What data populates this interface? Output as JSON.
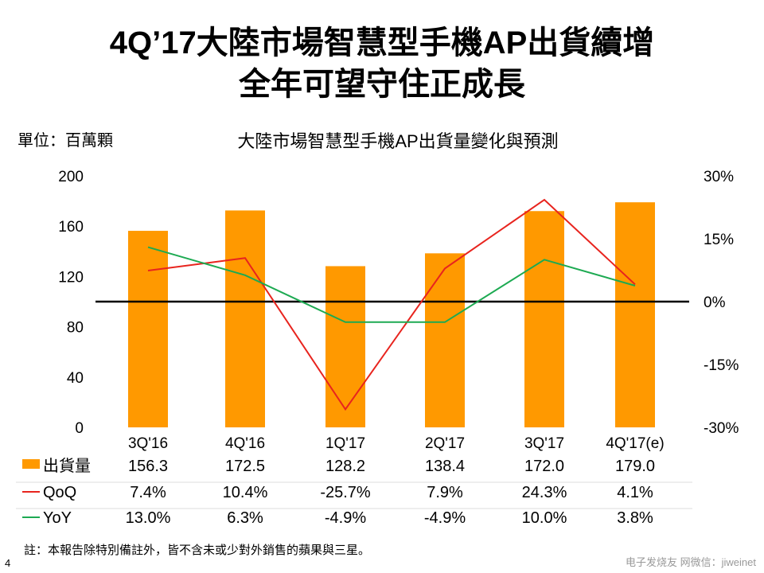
{
  "title_line1": "4Q’17大陸市場智慧型手機AP出貨續增",
  "title_line2": "全年可望守住正成長",
  "unit_label": "單位：百萬顆",
  "note": "註：本報告除特別備註外，皆不含未或少對外銷售的蘋果與三星。",
  "page_number": "4",
  "watermark": "电子发烧友 网微信：jiweinet",
  "chart_data": {
    "type": "bar",
    "title": "大陸市場智慧型手機AP出貨量變化與預測",
    "categories": [
      "3Q'16",
      "4Q'16",
      "1Q'17",
      "2Q'17",
      "3Q'17",
      "4Q'17(e)"
    ],
    "ylim": [
      0,
      200
    ],
    "yticks": [
      "0",
      "40",
      "80",
      "120",
      "160",
      "200"
    ],
    "y2lim": [
      -30,
      30
    ],
    "y2ticks": [
      "-30%",
      "-15%",
      "0%",
      "15%",
      "30%"
    ],
    "series": [
      {
        "name": "出貨量",
        "type": "bar",
        "color": "#FF9900",
        "values": [
          156.3,
          172.5,
          128.2,
          138.4,
          172.0,
          179.0
        ],
        "labels": [
          "156.3",
          "172.5",
          "128.2",
          "138.4",
          "172.0",
          "179.0"
        ]
      },
      {
        "name": "QoQ",
        "type": "line",
        "axis": "right",
        "color": "#E8241E",
        "values": [
          7.4,
          10.4,
          -25.7,
          7.9,
          24.3,
          4.1
        ],
        "labels": [
          "7.4%",
          "10.4%",
          "-25.7%",
          "7.9%",
          "24.3%",
          "4.1%"
        ]
      },
      {
        "name": "YoY",
        "type": "line",
        "axis": "right",
        "color": "#1DAA52",
        "values": [
          13.0,
          6.3,
          -4.9,
          -4.9,
          10.0,
          3.8
        ],
        "labels": [
          "13.0%",
          "6.3%",
          "-4.9%",
          "-4.9%",
          "10.0%",
          "3.8%"
        ]
      }
    ],
    "legend": "bottom-table"
  }
}
